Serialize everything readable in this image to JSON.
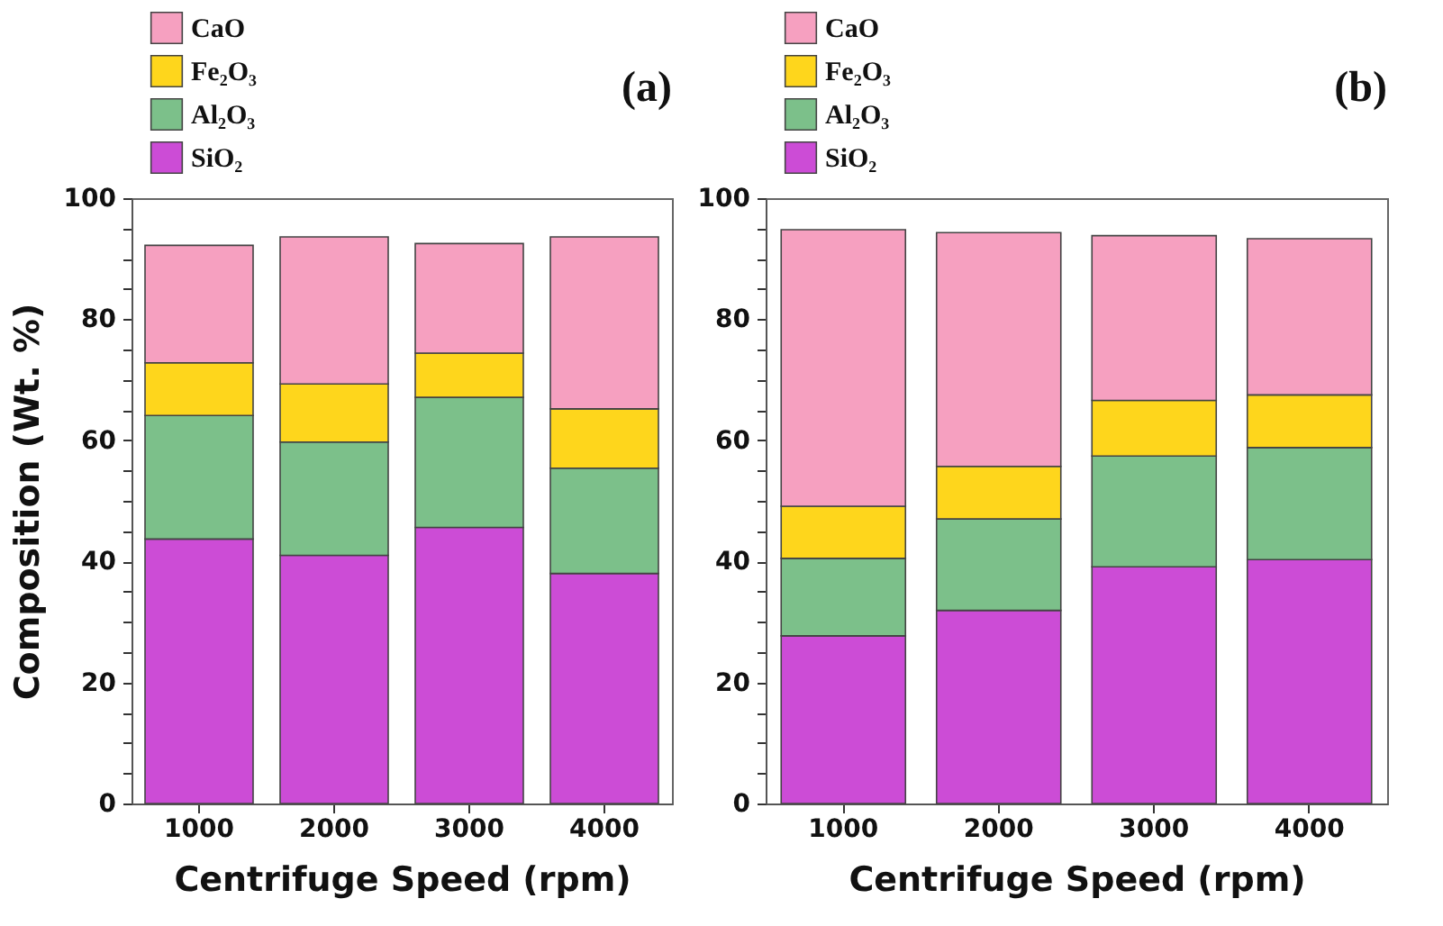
{
  "chart_data": [
    {
      "type": "bar",
      "title": "(a)",
      "xlabel": "Centrifuge Speed (rpm)",
      "ylabel": "Composition (Wt. %)",
      "stacked": true,
      "legend": "top left",
      "grid": false,
      "categories": [
        "1000",
        "2000",
        "3000",
        "4000"
      ],
      "ylim": [
        0,
        100
      ],
      "yticks": [
        0,
        {
          "value": 5,
          "label": null
        },
        {
          "value": 10,
          "label": null
        },
        {
          "value": 15,
          "label": null
        },
        20,
        {
          "value": 25,
          "label": null
        },
        {
          "value": 30,
          "label": null
        },
        {
          "value": 35,
          "label": null
        },
        40,
        {
          "value": 45,
          "label": null
        },
        {
          "value": 50,
          "label": null
        },
        {
          "value": 55,
          "label": null
        },
        60,
        {
          "value": 65,
          "label": null
        },
        {
          "value": 70,
          "label": null
        },
        {
          "value": 75,
          "label": null
        },
        80,
        {
          "value": 85,
          "label": null
        },
        {
          "value": 90,
          "label": null
        },
        {
          "value": 95,
          "label": null
        },
        100
      ],
      "series": [
        {
          "name": "SiO₂",
          "color": "#cc4cd6",
          "values": [
            43.7,
            41.0,
            45.6,
            38.0
          ]
        },
        {
          "name": "Al₂O₃",
          "color": "#7cc08a",
          "values": [
            20.4,
            18.7,
            21.5,
            17.4
          ]
        },
        {
          "name": "Fe₂O₃",
          "color": "#fed61c",
          "values": [
            8.7,
            9.6,
            7.3,
            9.8
          ]
        },
        {
          "name": "CaO",
          "color": "#f6a0c0",
          "values": [
            19.4,
            24.3,
            18.1,
            28.4
          ]
        }
      ]
    },
    {
      "type": "bar",
      "title": "(b)",
      "xlabel": "Centrifuge Speed (rpm)",
      "stacked": true,
      "legend": "top left",
      "grid": false,
      "categories": [
        "1000",
        "2000",
        "3000",
        "4000"
      ],
      "ylim": [
        0,
        100
      ],
      "yticks": [
        0,
        {
          "value": 5,
          "label": null
        },
        {
          "value": 10,
          "label": null
        },
        {
          "value": 15,
          "label": null
        },
        20,
        {
          "value": 25,
          "label": null
        },
        {
          "value": 30,
          "label": null
        },
        {
          "value": 35,
          "label": null
        },
        40,
        {
          "value": 45,
          "label": null
        },
        {
          "value": 50,
          "label": null
        },
        {
          "value": 55,
          "label": null
        },
        60,
        {
          "value": 65,
          "label": null
        },
        {
          "value": 70,
          "label": null
        },
        {
          "value": 75,
          "label": null
        },
        80,
        {
          "value": 85,
          "label": null
        },
        {
          "value": 90,
          "label": null
        },
        {
          "value": 95,
          "label": null
        },
        100
      ],
      "series": [
        {
          "name": "SiO₂",
          "color": "#cc4cd6",
          "values": [
            27.7,
            31.9,
            39.1,
            40.3
          ]
        },
        {
          "name": "Al₂O₃",
          "color": "#7cc08a",
          "values": [
            12.8,
            15.1,
            18.3,
            18.5
          ]
        },
        {
          "name": "Fe₂O₃",
          "color": "#fed61c",
          "values": [
            8.6,
            8.7,
            9.2,
            8.7
          ]
        },
        {
          "name": "CaO",
          "color": "#f6a0c0",
          "values": [
            45.7,
            38.6,
            27.2,
            25.8
          ]
        }
      ]
    }
  ]
}
